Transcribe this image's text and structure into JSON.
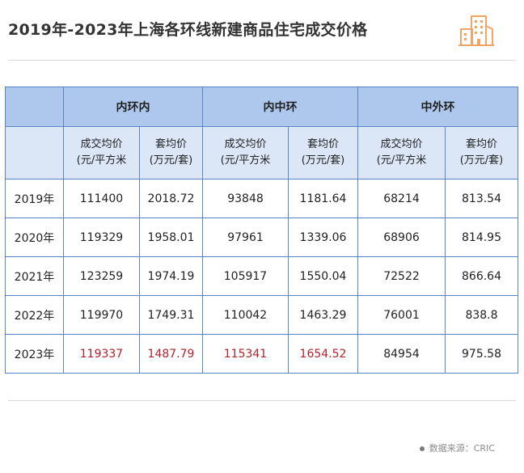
{
  "title": "2019年-2023年上海各环线新建商品住宅成交价格",
  "table": {
    "groups": [
      "内环内",
      "内中环",
      "中外环"
    ],
    "subheaders": [
      {
        "line1": "成交均价",
        "line2": "(元/平方米"
      },
      {
        "line1": "套均价",
        "line2": "(万元/套)"
      },
      {
        "line1": "成交均价",
        "line2": "(元/平方米"
      },
      {
        "line1": "套均价",
        "line2": "(万元/套)"
      },
      {
        "line1": "成交均价",
        "line2": "(元/平方米"
      },
      {
        "line1": "套均价",
        "line2": "(万元/套)"
      }
    ],
    "rows": [
      {
        "year": "2019年",
        "cells": [
          "111400",
          "2018.72",
          "93848",
          "1181.64",
          "68214",
          "813.54"
        ]
      },
      {
        "year": "2020年",
        "cells": [
          "119329",
          "1958.01",
          "97961",
          "1339.06",
          "68906",
          "814.95"
        ]
      },
      {
        "year": "2021年",
        "cells": [
          "123259",
          "1974.19",
          "105917",
          "1550.04",
          "72522",
          "866.64"
        ]
      },
      {
        "year": "2022年",
        "cells": [
          "119970",
          "1749.31",
          "110042",
          "1463.29",
          "76001",
          "838.8"
        ]
      },
      {
        "year": "2023年",
        "cells": [
          "119337",
          "1487.79",
          "115341",
          "1654.52",
          "84954",
          "975.58"
        ]
      }
    ],
    "highlight_color": "#b3212d"
  },
  "source": "数据来源：CRIC",
  "colors": {
    "header_dark": "#adc8ec",
    "header_light": "#dbe6f6",
    "border": "#5b84c4",
    "logo": "#f0a566"
  },
  "icons": {
    "logo": "building-icon",
    "bullet": "dot-icon"
  }
}
